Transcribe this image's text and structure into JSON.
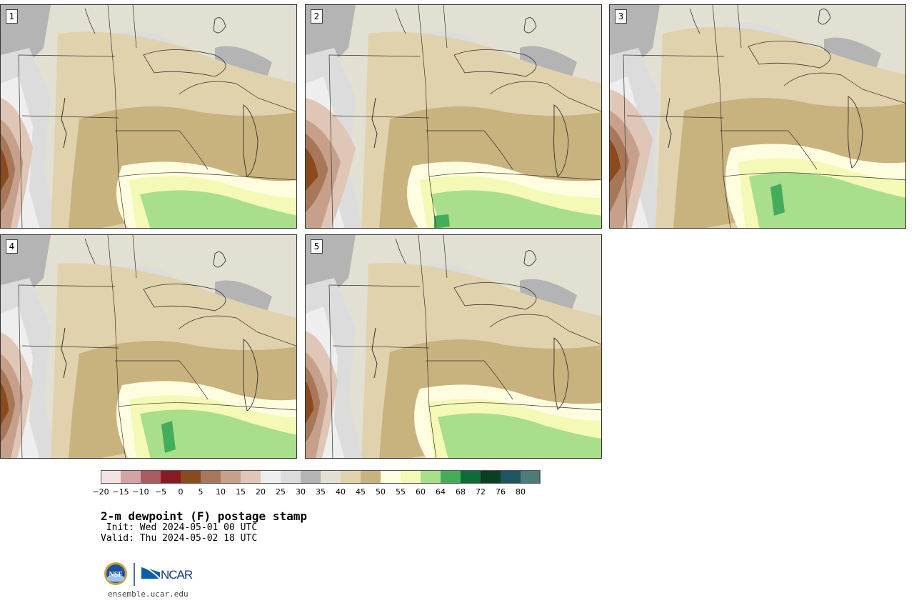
{
  "members": [
    {
      "label": "1",
      "pattern": 1
    },
    {
      "label": "2",
      "pattern": 2
    },
    {
      "label": "3",
      "pattern": 3
    },
    {
      "label": "4",
      "pattern": 4
    },
    {
      "label": "5",
      "pattern": 5
    }
  ],
  "colorbar": {
    "colors": [
      "#f2e4e4",
      "#d4a3a3",
      "#aa5b60",
      "#8a1a22",
      "#8a4a1e",
      "#a8775a",
      "#c6a08a",
      "#dfc6b6",
      "#eeeeee",
      "#dcdcdc",
      "#b4b4b4",
      "#e2e0d2",
      "#e0d2ac",
      "#c8b27e",
      "#fffde0",
      "#f4f9b6",
      "#a9de8c",
      "#44ad5c",
      "#0f6b37",
      "#0a3f24",
      "#1e5560",
      "#4f7a7a"
    ],
    "tick_labels": [
      "−20",
      "−15",
      "−10",
      "−5",
      "0",
      "5",
      "10",
      "15",
      "20",
      "25",
      "30",
      "35",
      "40",
      "45",
      "50",
      "55",
      "60",
      "64",
      "68",
      "72",
      "76",
      "80"
    ]
  },
  "title": "2-m dewpoint (F) postage stamp",
  "init": " Init: Wed 2024-05-01 00 UTC",
  "valid": "Valid: Thu 2024-05-02 18 UTC",
  "logos": {
    "nsf": "NSF",
    "ncar": "NCAR"
  },
  "site": "ensemble.ucar.edu"
}
